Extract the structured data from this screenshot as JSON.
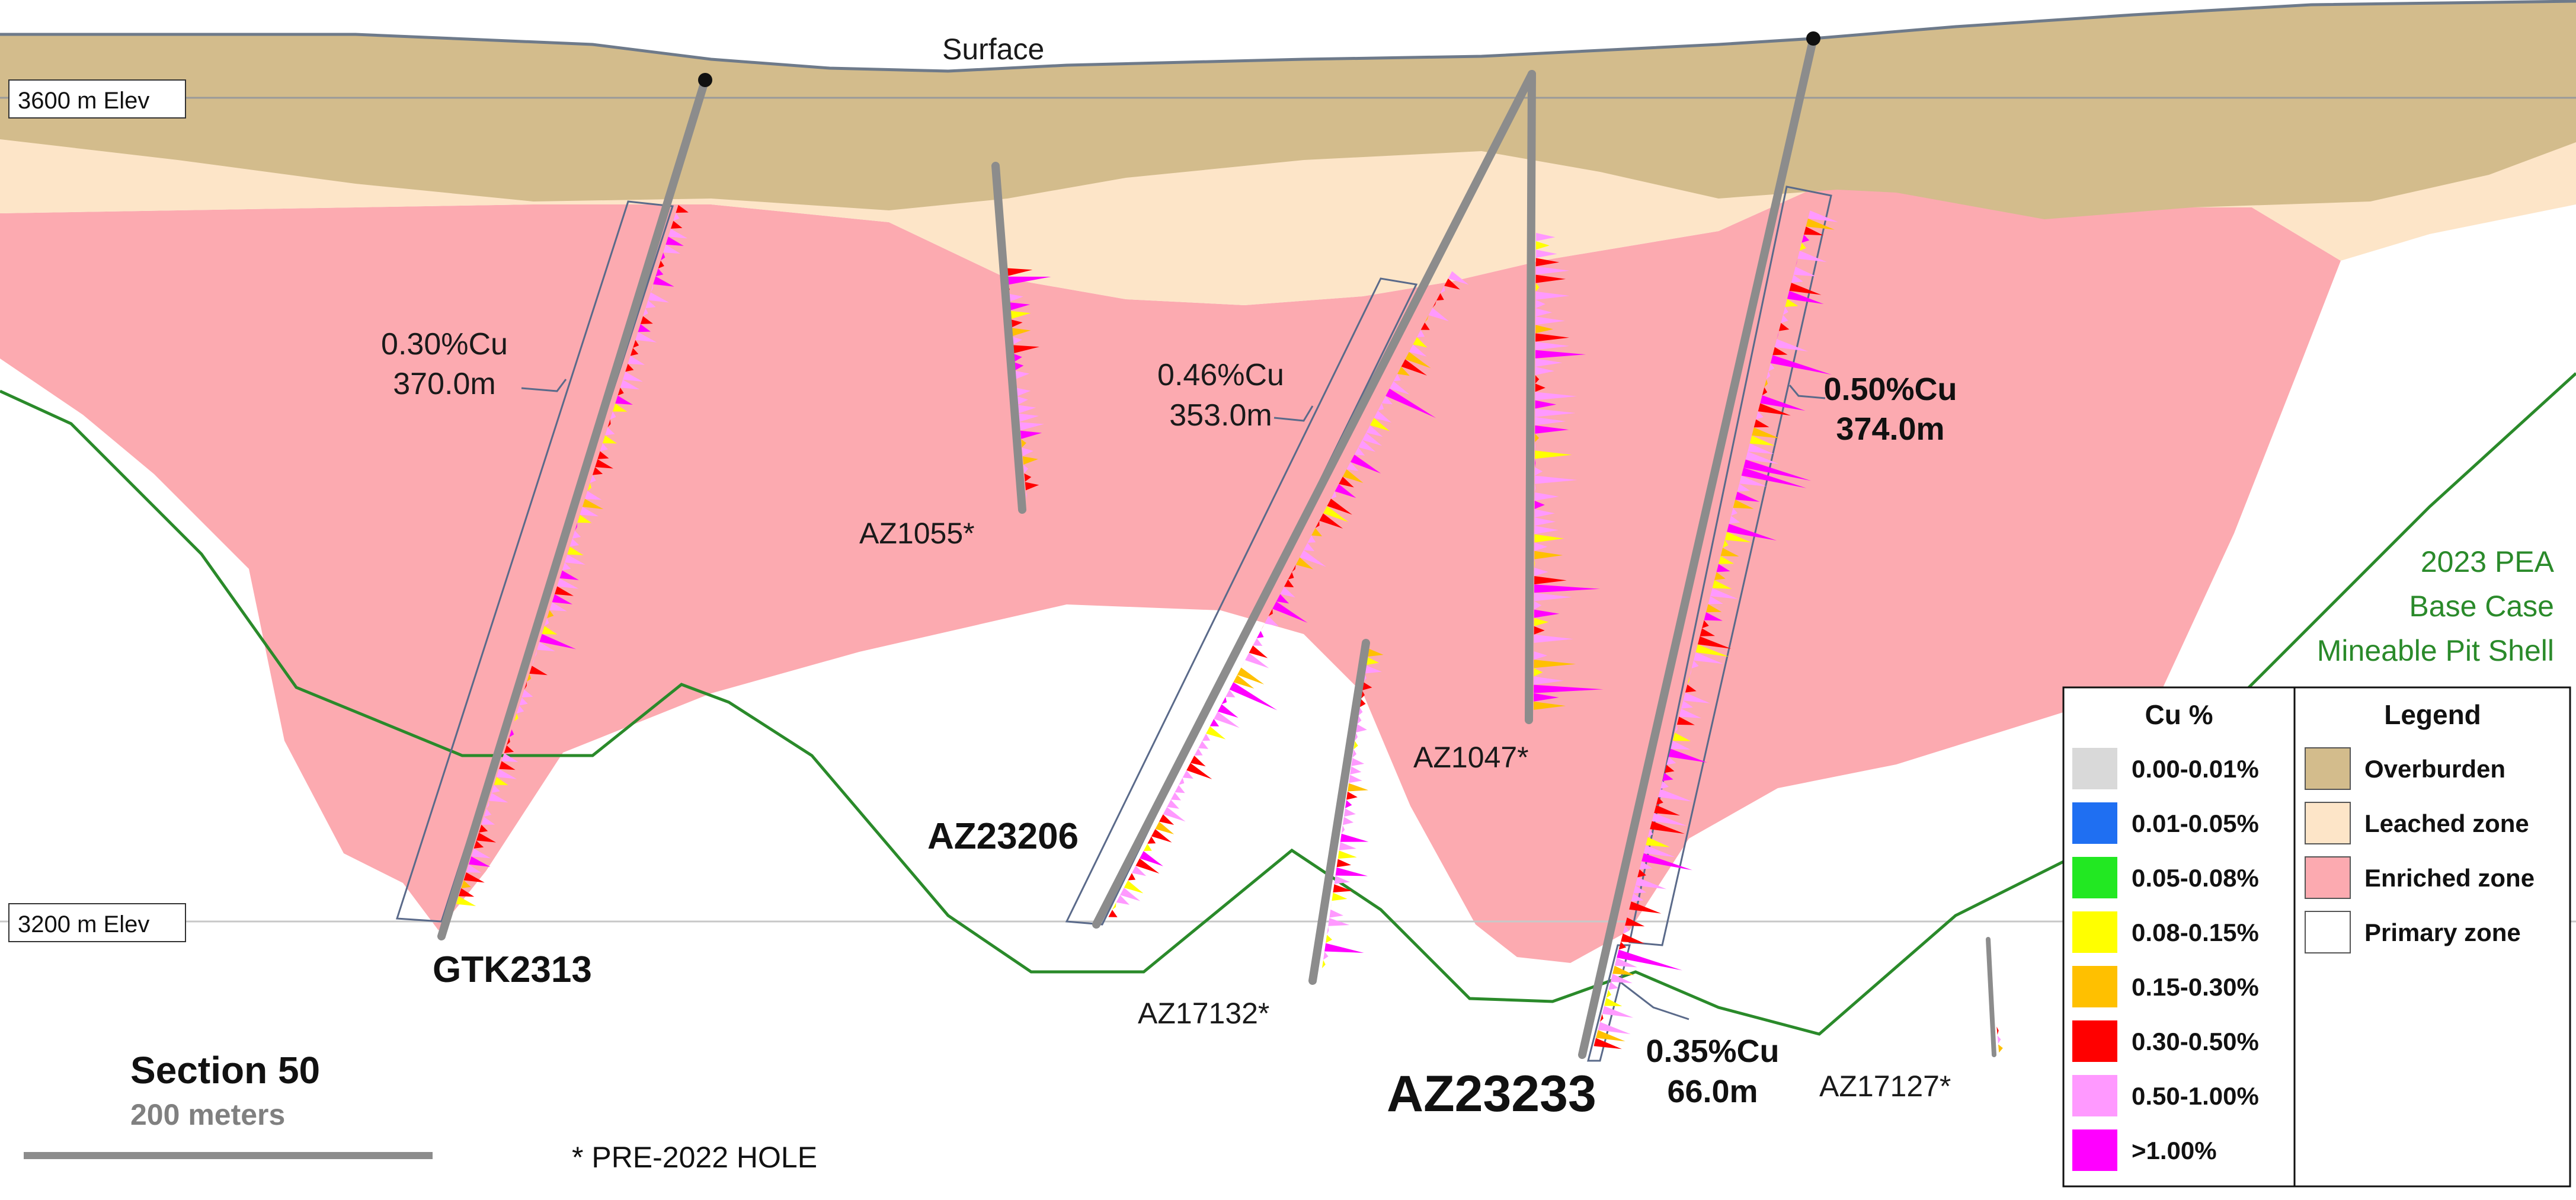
{
  "figure": {
    "surface_label": "Surface",
    "elevation_labels": [
      "3600 m Elev",
      "3200 m Elev"
    ],
    "pit_shell_label": [
      "2023 PEA",
      "Base Case",
      "Mineable Pit Shell"
    ],
    "section_title": "Section 50",
    "scale_label": "200 meters",
    "footnote": "* PRE-2022 HOLE"
  },
  "holes": [
    {
      "id": "GTK2313",
      "bold": true,
      "pre_2022": false
    },
    {
      "id": "AZ1055*",
      "bold": false,
      "pre_2022": true
    },
    {
      "id": "AZ23206",
      "bold": true,
      "pre_2022": false
    },
    {
      "id": "AZ17132*",
      "bold": false,
      "pre_2022": true
    },
    {
      "id": "AZ1047*",
      "bold": false,
      "pre_2022": true
    },
    {
      "id": "AZ23233",
      "bold": true,
      "pre_2022": false
    },
    {
      "id": "AZ17127*",
      "bold": false,
      "pre_2022": true
    }
  ],
  "intercepts": [
    {
      "grade": "0.30%Cu",
      "length": "370.0m",
      "bold": false
    },
    {
      "grade": "0.46%Cu",
      "length": "353.0m",
      "bold": false
    },
    {
      "grade": "0.50%Cu",
      "length": "374.0m",
      "bold": true
    },
    {
      "grade": "0.35%Cu",
      "length": "66.0m",
      "bold": true
    }
  ],
  "cu_legend": {
    "title": "Cu %",
    "items": [
      {
        "label": "0.00-0.01%",
        "color": "#d9d9d9"
      },
      {
        "label": "0.01-0.05%",
        "color": "#1f6ff2"
      },
      {
        "label": "0.05-0.08%",
        "color": "#22e822"
      },
      {
        "label": "0.08-0.15%",
        "color": "#ffff00"
      },
      {
        "label": "0.15-0.30%",
        "color": "#ffc000"
      },
      {
        "label": "0.30-0.50%",
        "color": "#ff0000"
      },
      {
        "label": "0.50-1.00%",
        "color": "#ff99ff"
      },
      {
        "label": ">1.00%",
        "color": "#ff00ff"
      }
    ]
  },
  "zone_legend": {
    "title": "Legend",
    "items": [
      {
        "label": "Overburden",
        "color": "#d3bc8c"
      },
      {
        "label": "Leached zone",
        "color": "#fde5c8"
      },
      {
        "label": "Enriched zone",
        "color": "#fcaab0"
      },
      {
        "label": "Primary zone",
        "color": "#ffffff"
      }
    ]
  },
  "colors": {
    "overburden": "#d3bc8c",
    "leached": "#fde5c8",
    "enriched": "#fcaab0",
    "pit_shell": "#2a8a2a",
    "drillhole": "#8c8c8c"
  }
}
